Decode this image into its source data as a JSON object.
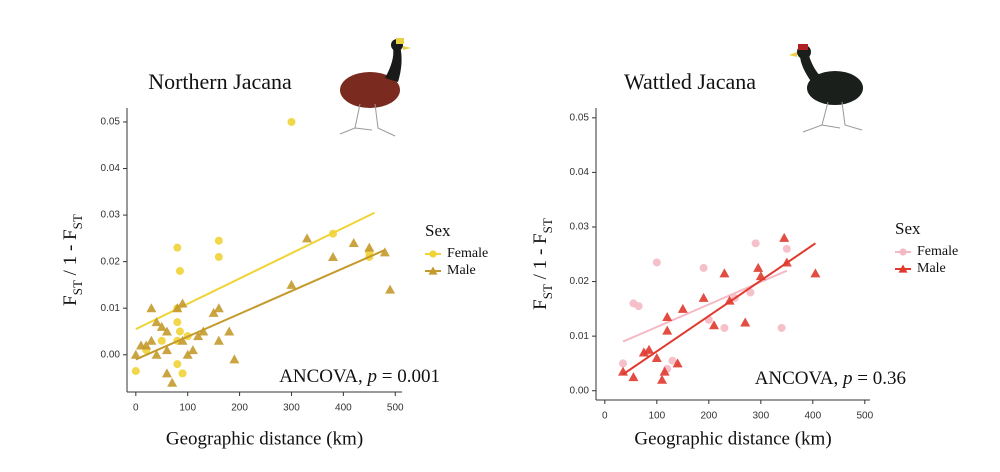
{
  "chart_data": [
    {
      "type": "scatter",
      "title": "Northern Jacana",
      "xlabel": "Geographic distance (km)",
      "ylabel": [
        "F",
        "ST",
        " / 1 - F",
        "ST"
      ],
      "annotation": [
        "ANCOVA, ",
        "p",
        " = 0.001"
      ],
      "legend_title": "Sex",
      "legend": "right",
      "xlim": [
        -17,
        513
      ],
      "ylim": [
        -0.008,
        0.053
      ],
      "xticks": [
        0,
        100,
        200,
        300,
        400,
        500
      ],
      "yticks": [
        {
          "value": 0,
          "label": "0.00"
        },
        0.01,
        0.02,
        0.03,
        0.04,
        0.05
      ],
      "series": [
        {
          "name": "Female",
          "color": "#f0d335",
          "marker": "circle",
          "x": [
            300,
            80,
            85,
            160,
            160,
            380,
            450,
            450,
            80,
            80,
            85,
            80,
            80,
            0,
            50,
            20,
            100,
            90
          ],
          "y": [
            0.05,
            0.023,
            0.018,
            0.0245,
            0.021,
            0.026,
            0.021,
            0.022,
            0.01,
            0.007,
            0.005,
            0.003,
            -0.002,
            -0.0035,
            0.003,
            0.001,
            0.004,
            -0.004
          ],
          "fit": {
            "x": [
              0,
              460
            ],
            "y": [
              0.0055,
              0.0305
            ]
          }
        },
        {
          "name": "Male",
          "color": "#c49a2c",
          "marker": "triangle",
          "x": [
            0,
            10,
            30,
            40,
            50,
            20,
            30,
            60,
            60,
            70,
            80,
            90,
            100,
            110,
            120,
            130,
            150,
            160,
            160,
            180,
            190,
            300,
            330,
            380,
            420,
            450,
            480,
            490,
            60,
            40,
            90
          ],
          "y": [
            0,
            0.002,
            0.01,
            0.007,
            0.006,
            0.002,
            0.003,
            0.001,
            -0.004,
            -0.006,
            0.01,
            0.011,
            0.0,
            0.001,
            0.004,
            0.005,
            0.009,
            0.01,
            0.003,
            0.005,
            -0.001,
            0.015,
            0.025,
            0.021,
            0.024,
            0.023,
            0.022,
            0.014,
            0.005,
            0.0,
            0.003
          ],
          "fit": {
            "x": [
              0,
              480
            ],
            "y": [
              -0.001,
              0.0225
            ]
          }
        }
      ]
    },
    {
      "type": "scatter",
      "title": "Wattled Jacana",
      "xlabel": "Geographic distance (km)",
      "ylabel": [
        "F",
        "ST",
        " / 1 - F",
        "ST"
      ],
      "annotation": [
        "ANCOVA, ",
        "p",
        " = 0.36"
      ],
      "legend_title": "Sex",
      "legend": "right",
      "xlim": [
        -17,
        510
      ],
      "ylim": [
        -0.0017,
        0.0518
      ],
      "xticks": [
        0,
        100,
        200,
        300,
        400,
        500
      ],
      "yticks": [
        {
          "value": 0,
          "label": "0.00"
        },
        0.01,
        0.02,
        0.03,
        0.04,
        0.05
      ],
      "series": [
        {
          "name": "Female",
          "color": "#f4b9c4",
          "marker": "circle",
          "x": [
            35,
            55,
            65,
            100,
            130,
            190,
            200,
            230,
            250,
            280,
            290,
            340,
            350,
            80,
            120
          ],
          "y": [
            0.005,
            0.016,
            0.0155,
            0.0235,
            0.0055,
            0.0225,
            0.013,
            0.0115,
            0.017,
            0.018,
            0.027,
            0.0115,
            0.026,
            0.007,
            0.004
          ],
          "fit": {
            "x": [
              35,
              350
            ],
            "y": [
              0.009,
              0.022
            ]
          }
        },
        {
          "name": "Male",
          "color": "#e0392c",
          "marker": "triangle",
          "x": [
            35,
            55,
            75,
            85,
            100,
            110,
            115,
            120,
            120,
            140,
            150,
            190,
            210,
            230,
            240,
            270,
            295,
            300,
            345,
            350,
            405
          ],
          "y": [
            0.0035,
            0.0025,
            0.007,
            0.0075,
            0.006,
            0.002,
            0.0035,
            0.0135,
            0.011,
            0.005,
            0.015,
            0.017,
            0.012,
            0.0215,
            0.0165,
            0.0125,
            0.0225,
            0.021,
            0.028,
            0.0235,
            0.0215
          ],
          "fit": {
            "x": [
              35,
              405
            ],
            "y": [
              0.003,
              0.027
            ]
          }
        }
      ]
    }
  ]
}
